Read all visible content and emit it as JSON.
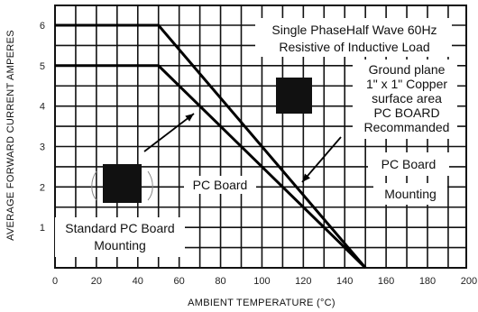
{
  "chart_data": {
    "type": "line",
    "xlabel": "AMBIENT TEMPERATURE  (°C)",
    "ylabel": "AVERAGE FORWARD CURRENT AMPERES",
    "xlim": [
      0,
      200
    ],
    "ylim": [
      0,
      6.3
    ],
    "x_ticks": [
      "0",
      "20",
      "40",
      "60",
      "80",
      "100",
      "120",
      "140",
      "160",
      "180",
      "200"
    ],
    "y_ticks": [
      "1",
      "2",
      "3",
      "4",
      "5",
      "6"
    ],
    "grid": true,
    "series": [
      {
        "x": [
          0,
          50,
          150
        ],
        "y": [
          6,
          6,
          0
        ]
      },
      {
        "x": [
          0,
          50,
          150
        ],
        "y": [
          5,
          5,
          0
        ]
      }
    ],
    "annotations": {
      "conditions": [
        "Single PhaseHalf Wave 60Hz",
        "Resistive of Inductive Load"
      ],
      "ground_plane": [
        "Ground plane",
        "1\" x 1\" Copper",
        "surface area",
        "PC BOARD",
        "Recommanded"
      ],
      "pc_board_right": [
        "PC Board",
        "Mounting"
      ],
      "pc_board_middle": "PC Board",
      "standard": [
        "Standard PC Board",
        "Mounting"
      ]
    }
  }
}
